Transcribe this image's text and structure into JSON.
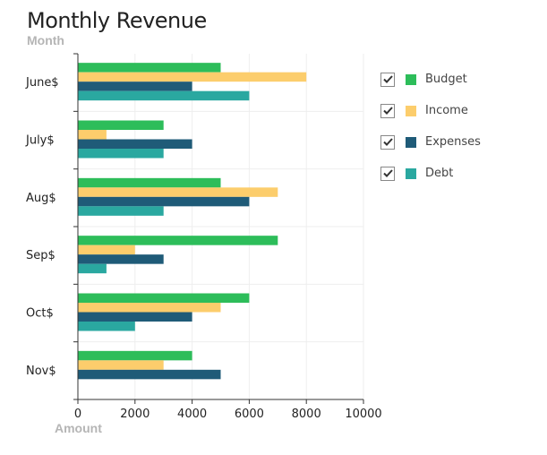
{
  "chart_data": {
    "type": "bar",
    "orientation": "horizontal",
    "title": "Monthly Revenue",
    "xlabel": "Amount",
    "ylabel": "Month",
    "categories": [
      "June$",
      "July$",
      "Aug$",
      "Sep$",
      "Oct$",
      "Nov$"
    ],
    "series": [
      {
        "name": "Budget",
        "color": "#2dbd5a",
        "values": [
          5000,
          3000,
          5000,
          7000,
          6000,
          4000
        ]
      },
      {
        "name": "Income",
        "color": "#fccd6c",
        "values": [
          8000,
          1000,
          7000,
          2000,
          5000,
          3000
        ]
      },
      {
        "name": "Expenses",
        "color": "#1f5b78",
        "values": [
          4000,
          4000,
          6000,
          3000,
          4000,
          5000
        ]
      },
      {
        "name": "Debt",
        "color": "#2aa8a0",
        "values": [
          6000,
          3000,
          3000,
          1000,
          2000,
          0
        ]
      }
    ],
    "xlim": [
      0,
      10000
    ],
    "xticks": [
      "0",
      "2000",
      "4000",
      "6000",
      "8000",
      "10000"
    ],
    "grid": true,
    "legend": "right"
  }
}
